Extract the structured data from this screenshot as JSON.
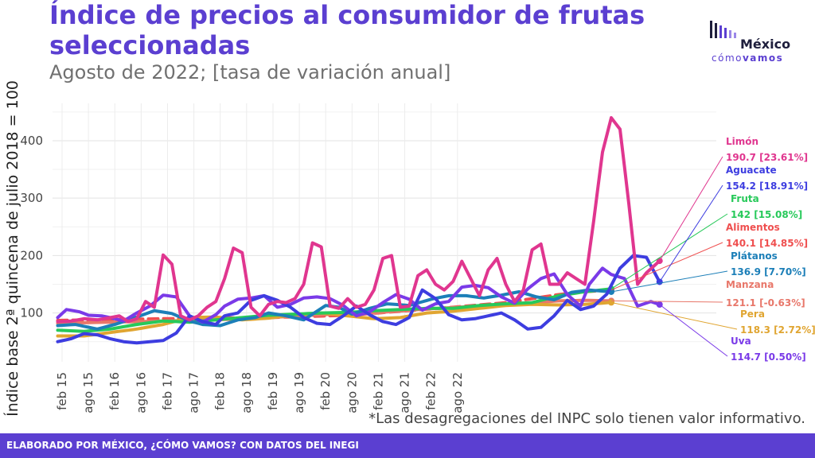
{
  "header": {
    "title": "Índice de precios al consumidor de frutas seleccionadas",
    "subtitle": "Agosto de 2022; [tasa de variación anual]"
  },
  "logo": {
    "main": "México",
    "sub_light": "cómo",
    "sub_bold": "vamos"
  },
  "note": "*Las desagregaciones del INPC solo tienen valor informativo.",
  "footer": {
    "text": "ELABORADO POR MÉXICO, ¿CÓMO VAMOS? CON DATOS DEL INEGI"
  },
  "colors": {
    "title": "#5b3fd1",
    "Limón": "#e0368f",
    "Aguacate": "#3d3de0",
    "Fruta": "#27c95a",
    "Alimentos": "#ef4f4f",
    "Plátanos": "#1c7fb8",
    "Manzana": "#e8776a",
    "Pera": "#e0a531",
    "Uva": "#7a3ae8"
  },
  "chart_data": {
    "type": "line",
    "ylabel": "Índice base 2ª quincena de julio 2018 = 100",
    "xlabel": "",
    "ylim": [
      15,
      465
    ],
    "yticks": [
      100,
      200,
      300,
      400
    ],
    "grid": true,
    "x_tick_labels": [
      "feb 15",
      "ago 15",
      "feb 16",
      "ago 16",
      "feb 17",
      "ago 17",
      "feb 18",
      "ago 18",
      "feb 19",
      "ago 19",
      "feb 20",
      "ago 20",
      "feb 21",
      "ago 21",
      "feb 22",
      "ago 22"
    ],
    "x_start": "2015-01",
    "x_end": "2022-08",
    "series": [
      {
        "name": "Alimentos",
        "last_label": "140.1 [14.85%]",
        "style": "dashed",
        "anchors": [
          [
            0,
            87
          ],
          [
            24,
            90
          ],
          [
            48,
            92
          ],
          [
            66,
            96
          ],
          [
            78,
            103
          ],
          [
            90,
            110
          ],
          [
            102,
            118
          ],
          [
            114,
            132
          ],
          [
            120,
            137
          ],
          [
            126,
            140.1
          ]
        ]
      },
      {
        "name": "Manzana",
        "last_label": "121.1 [-0.63%]",
        "anchors": [
          [
            0,
            82
          ],
          [
            12,
            84
          ],
          [
            24,
            86
          ],
          [
            36,
            88
          ],
          [
            48,
            92
          ],
          [
            60,
            97
          ],
          [
            72,
            100
          ],
          [
            84,
            107
          ],
          [
            96,
            112
          ],
          [
            108,
            118
          ],
          [
            114,
            121
          ],
          [
            120,
            122
          ],
          [
            126,
            121.1
          ]
        ]
      },
      {
        "name": "Pera",
        "last_label": "118.3 [2.72%]",
        "anchors": [
          [
            0,
            60
          ],
          [
            6,
            60
          ],
          [
            12,
            66
          ],
          [
            18,
            72
          ],
          [
            24,
            80
          ],
          [
            30,
            92
          ],
          [
            36,
            93
          ],
          [
            42,
            88
          ],
          [
            48,
            91
          ],
          [
            54,
            97
          ],
          [
            60,
            100
          ],
          [
            66,
            95
          ],
          [
            72,
            90
          ],
          [
            78,
            92
          ],
          [
            84,
            100
          ],
          [
            90,
            103
          ],
          [
            96,
            108
          ],
          [
            102,
            113
          ],
          [
            108,
            115
          ],
          [
            114,
            114
          ],
          [
            120,
            115
          ],
          [
            126,
            118.3
          ]
        ]
      },
      {
        "name": "Fruta",
        "last_label": "142 [15.08%]",
        "anchors": [
          [
            0,
            70
          ],
          [
            6,
            68
          ],
          [
            12,
            72
          ],
          [
            18,
            80
          ],
          [
            24,
            86
          ],
          [
            30,
            84
          ],
          [
            36,
            88
          ],
          [
            42,
            92
          ],
          [
            48,
            96
          ],
          [
            54,
            98
          ],
          [
            60,
            100
          ],
          [
            66,
            101
          ],
          [
            72,
            104
          ],
          [
            78,
            106
          ],
          [
            84,
            108
          ],
          [
            90,
            108
          ],
          [
            96,
            113
          ],
          [
            102,
            116
          ],
          [
            108,
            118
          ],
          [
            114,
            130
          ],
          [
            120,
            137
          ],
          [
            126,
            142
          ]
        ]
      },
      {
        "name": "Plátanos",
        "last_label": "136.9 [7.70%]",
        "anchors": [
          [
            0,
            78
          ],
          [
            4,
            80
          ],
          [
            9,
            72
          ],
          [
            13,
            80
          ],
          [
            18,
            93
          ],
          [
            22,
            104
          ],
          [
            26,
            99
          ],
          [
            30,
            86
          ],
          [
            33,
            80
          ],
          [
            37,
            78
          ],
          [
            41,
            88
          ],
          [
            45,
            92
          ],
          [
            48,
            100
          ],
          [
            52,
            95
          ],
          [
            56,
            88
          ],
          [
            61,
            113
          ],
          [
            64,
            110
          ],
          [
            67,
            98
          ],
          [
            71,
            108
          ],
          [
            75,
            116
          ],
          [
            80,
            113
          ],
          [
            85,
            124
          ],
          [
            89,
            130
          ],
          [
            93,
            130
          ],
          [
            97,
            126
          ],
          [
            101,
            131
          ],
          [
            105,
            137
          ],
          [
            109,
            128
          ],
          [
            113,
            123
          ],
          [
            117,
            136
          ],
          [
            121,
            140
          ],
          [
            126,
            136.9
          ]
        ]
      },
      {
        "name": "Uva",
        "last_label": "114.7 [0.50%]",
        "anchors": [
          [
            0,
            92
          ],
          [
            2,
            106
          ],
          [
            5,
            102
          ],
          [
            7,
            96
          ],
          [
            10,
            95
          ],
          [
            12,
            92
          ],
          [
            15,
            86
          ],
          [
            18,
            100
          ],
          [
            21,
            112
          ],
          [
            24,
            131
          ],
          [
            27,
            128
          ],
          [
            30,
            95
          ],
          [
            33,
            84
          ],
          [
            36,
            97
          ],
          [
            38,
            112
          ],
          [
            41,
            124
          ],
          [
            44,
            126
          ],
          [
            47,
            130
          ],
          [
            50,
            110
          ],
          [
            53,
            115
          ],
          [
            56,
            126
          ],
          [
            59,
            128
          ],
          [
            62,
            125
          ],
          [
            65,
            113
          ],
          [
            68,
            95
          ],
          [
            71,
            102
          ],
          [
            74,
            118
          ],
          [
            77,
            132
          ],
          [
            80,
            124
          ],
          [
            83,
            105
          ],
          [
            86,
            116
          ],
          [
            89,
            120
          ],
          [
            92,
            145
          ],
          [
            95,
            148
          ],
          [
            98,
            144
          ],
          [
            101,
            128
          ],
          [
            104,
            117
          ],
          [
            107,
            142
          ],
          [
            110,
            160
          ],
          [
            113,
            168
          ],
          [
            116,
            132
          ],
          [
            119,
            112
          ],
          [
            121,
            150
          ],
          [
            124,
            178
          ],
          [
            126,
            167
          ],
          [
            129,
            160
          ],
          [
            132,
            112
          ],
          [
            135,
            120
          ],
          [
            137,
            114.7
          ]
        ]
      },
      {
        "name": "Aguacate",
        "last_label": "154.2 [18.91%]",
        "anchors": [
          [
            0,
            50
          ],
          [
            3,
            55
          ],
          [
            6,
            64
          ],
          [
            9,
            62
          ],
          [
            12,
            55
          ],
          [
            15,
            50
          ],
          [
            18,
            48
          ],
          [
            21,
            50
          ],
          [
            24,
            52
          ],
          [
            27,
            65
          ],
          [
            30,
            95
          ],
          [
            33,
            85
          ],
          [
            36,
            80
          ],
          [
            38,
            95
          ],
          [
            41,
            100
          ],
          [
            44,
            122
          ],
          [
            47,
            130
          ],
          [
            50,
            122
          ],
          [
            53,
            110
          ],
          [
            56,
            92
          ],
          [
            59,
            82
          ],
          [
            62,
            80
          ],
          [
            65,
            95
          ],
          [
            68,
            112
          ],
          [
            71,
            97
          ],
          [
            74,
            85
          ],
          [
            77,
            80
          ],
          [
            80,
            92
          ],
          [
            83,
            140
          ],
          [
            86,
            125
          ],
          [
            89,
            97
          ],
          [
            92,
            88
          ],
          [
            95,
            90
          ],
          [
            98,
            95
          ],
          [
            101,
            100
          ],
          [
            104,
            88
          ],
          [
            107,
            72
          ],
          [
            110,
            75
          ],
          [
            113,
            95
          ],
          [
            116,
            122
          ],
          [
            119,
            106
          ],
          [
            122,
            112
          ],
          [
            125,
            133
          ],
          [
            128,
            178
          ],
          [
            131,
            200
          ],
          [
            134,
            197
          ],
          [
            137,
            154.2
          ]
        ]
      },
      {
        "name": "Limón",
        "last_label": "190.7 [23.61%]",
        "anchors": [
          [
            0,
            85
          ],
          [
            3,
            86
          ],
          [
            6,
            90
          ],
          [
            9,
            88
          ],
          [
            12,
            92
          ],
          [
            14,
            95
          ],
          [
            16,
            85
          ],
          [
            18,
            90
          ],
          [
            20,
            120
          ],
          [
            22,
            110
          ],
          [
            24,
            201
          ],
          [
            26,
            185
          ],
          [
            28,
            95
          ],
          [
            30,
            88
          ],
          [
            32,
            95
          ],
          [
            34,
            110
          ],
          [
            36,
            120
          ],
          [
            38,
            160
          ],
          [
            40,
            213
          ],
          [
            42,
            205
          ],
          [
            44,
            110
          ],
          [
            46,
            95
          ],
          [
            48,
            115
          ],
          [
            50,
            120
          ],
          [
            52,
            118
          ],
          [
            54,
            125
          ],
          [
            56,
            150
          ],
          [
            58,
            222
          ],
          [
            60,
            215
          ],
          [
            62,
            112
          ],
          [
            64,
            108
          ],
          [
            66,
            125
          ],
          [
            68,
            110
          ],
          [
            70,
            115
          ],
          [
            72,
            140
          ],
          [
            74,
            195
          ],
          [
            76,
            200
          ],
          [
            78,
            110
          ],
          [
            80,
            112
          ],
          [
            82,
            165
          ],
          [
            84,
            175
          ],
          [
            86,
            150
          ],
          [
            88,
            140
          ],
          [
            90,
            155
          ],
          [
            92,
            190
          ],
          [
            94,
            160
          ],
          [
            96,
            130
          ],
          [
            98,
            175
          ],
          [
            100,
            195
          ],
          [
            102,
            150
          ],
          [
            104,
            120
          ],
          [
            106,
            140
          ],
          [
            108,
            210
          ],
          [
            110,
            220
          ],
          [
            112,
            150
          ],
          [
            114,
            150
          ],
          [
            116,
            170
          ],
          [
            118,
            160
          ],
          [
            120,
            150
          ],
          [
            122,
            260
          ],
          [
            124,
            380
          ],
          [
            126,
            440
          ],
          [
            128,
            420
          ],
          [
            130,
            290
          ],
          [
            132,
            150
          ],
          [
            134,
            170
          ],
          [
            137,
            190.7
          ]
        ]
      }
    ]
  }
}
